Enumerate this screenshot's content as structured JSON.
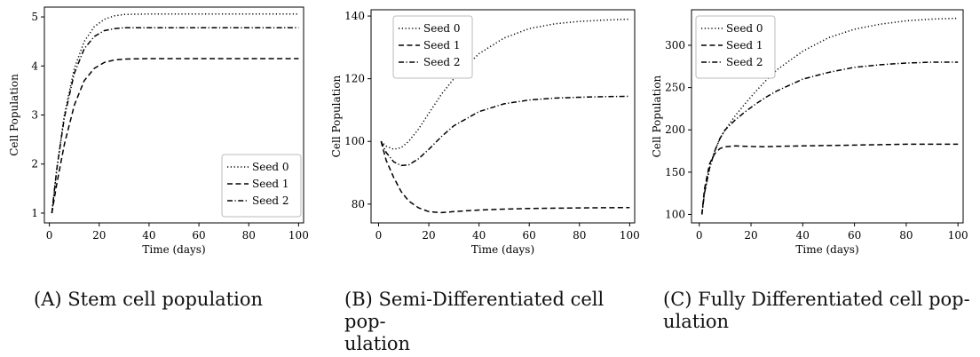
{
  "captions": [
    {
      "label": "(A)",
      "text": "Stem cell population"
    },
    {
      "label": "(B)",
      "text": "Semi-Differentiated cell pop-",
      "text2": "ulation"
    },
    {
      "label": "(C)",
      "text": "Fully Differentiated cell pop-",
      "text2": "ulation"
    }
  ],
  "chart_data": [
    {
      "type": "line",
      "xlabel": "Time (days)",
      "ylabel": "Cell Population",
      "xlim": [
        -2,
        102
      ],
      "ylim": [
        0.8,
        5.2
      ],
      "xticks": [
        0,
        20,
        40,
        60,
        80,
        100
      ],
      "yticks": [
        1,
        2,
        3,
        4,
        5
      ],
      "grid": false,
      "legend_position": "lower-right",
      "series": [
        {
          "name": "Seed 0",
          "dash": "dotted",
          "x": [
            1,
            3,
            6,
            10,
            14,
            18,
            22,
            26,
            30,
            40,
            50,
            100
          ],
          "y": [
            1.0,
            1.9,
            3.0,
            3.95,
            4.5,
            4.8,
            4.95,
            5.02,
            5.05,
            5.06,
            5.06,
            5.06
          ]
        },
        {
          "name": "Seed 1",
          "dash": "dashed",
          "x": [
            1,
            3,
            6,
            10,
            14,
            18,
            22,
            26,
            30,
            40,
            50,
            100
          ],
          "y": [
            1.0,
            1.6,
            2.4,
            3.2,
            3.7,
            3.95,
            4.07,
            4.12,
            4.14,
            4.15,
            4.15,
            4.15
          ]
        },
        {
          "name": "Seed 2",
          "dash": "dashdot",
          "x": [
            1,
            3,
            6,
            10,
            14,
            18,
            22,
            26,
            30,
            40,
            50,
            100
          ],
          "y": [
            1.0,
            1.9,
            2.95,
            3.85,
            4.35,
            4.6,
            4.72,
            4.76,
            4.78,
            4.78,
            4.78,
            4.78
          ]
        }
      ]
    },
    {
      "type": "line",
      "xlabel": "Time (days)",
      "ylabel": "Cell Population",
      "xlim": [
        -3,
        102
      ],
      "ylim": [
        74,
        142
      ],
      "xticks": [
        0,
        20,
        40,
        60,
        80,
        100
      ],
      "yticks": [
        80,
        100,
        120,
        140
      ],
      "grid": false,
      "legend_position": "top-left",
      "series": [
        {
          "name": "Seed 0",
          "dash": "dotted",
          "x": [
            1,
            3,
            6,
            9,
            12,
            16,
            20,
            25,
            30,
            40,
            50,
            60,
            70,
            80,
            90,
            100
          ],
          "y": [
            100,
            98.5,
            97.5,
            98,
            100,
            104,
            109,
            115,
            120,
            128,
            133,
            136,
            137.5,
            138.3,
            138.7,
            139
          ]
        },
        {
          "name": "Seed 1",
          "dash": "dashed",
          "x": [
            1,
            3,
            6,
            9,
            12,
            16,
            20,
            25,
            30,
            40,
            50,
            60,
            80,
            100
          ],
          "y": [
            100,
            94,
            88.5,
            84,
            81,
            78.8,
            77.6,
            77.3,
            77.6,
            78.1,
            78.4,
            78.6,
            78.8,
            78.9
          ]
        },
        {
          "name": "Seed 2",
          "dash": "dashdot",
          "x": [
            1,
            3,
            6,
            9,
            12,
            16,
            20,
            25,
            30,
            40,
            50,
            60,
            70,
            80,
            90,
            100
          ],
          "y": [
            100,
            96.5,
            93.5,
            92.3,
            92.5,
            94.5,
            97.5,
            101.5,
            105,
            109.5,
            112,
            113.2,
            113.8,
            114.1,
            114.3,
            114.4
          ]
        }
      ]
    },
    {
      "type": "line",
      "xlabel": "Time (days)",
      "ylabel": "Cell Population",
      "xlim": [
        -3,
        102
      ],
      "ylim": [
        90,
        342
      ],
      "xticks": [
        0,
        20,
        40,
        60,
        80,
        100
      ],
      "yticks": [
        100,
        150,
        200,
        250,
        300
      ],
      "grid": false,
      "legend_position": "top-left",
      "series": [
        {
          "name": "Seed 0",
          "dash": "dotted",
          "x": [
            1,
            2,
            4,
            6,
            8,
            10,
            14,
            18,
            22,
            26,
            30,
            40,
            50,
            60,
            70,
            80,
            90,
            100
          ],
          "y": [
            100,
            125,
            155,
            175,
            190,
            200,
            217,
            232,
            246,
            259,
            271,
            293,
            309,
            319,
            325,
            329,
            331,
            332
          ]
        },
        {
          "name": "Seed 1",
          "dash": "dashed",
          "x": [
            1,
            2,
            4,
            6,
            8,
            10,
            14,
            18,
            25,
            30,
            40,
            60,
            80,
            100
          ],
          "y": [
            100,
            130,
            160,
            172,
            178,
            180,
            181,
            180.5,
            180,
            180.5,
            181,
            182,
            183,
            183
          ]
        },
        {
          "name": "Seed 2",
          "dash": "dashdot",
          "x": [
            1,
            2,
            4,
            6,
            8,
            10,
            14,
            18,
            22,
            26,
            30,
            40,
            50,
            60,
            70,
            80,
            90,
            100
          ],
          "y": [
            100,
            125,
            155,
            175,
            190,
            200,
            212,
            222,
            231,
            239,
            246,
            260,
            268,
            274,
            277,
            279,
            280,
            280
          ]
        }
      ]
    }
  ]
}
